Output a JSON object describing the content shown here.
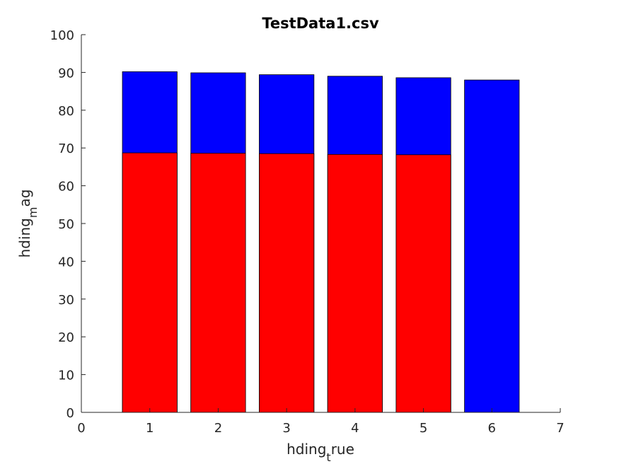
{
  "chart_data": {
    "type": "bar",
    "title": "TestData1.csv",
    "xlabel": {
      "base": "hding",
      "sub": "t",
      "rest": "rue"
    },
    "ylabel": {
      "base": "hding",
      "sub": "m",
      "rest": "ag"
    },
    "xlim": [
      0,
      7
    ],
    "ylim": [
      0,
      100
    ],
    "xticks": [
      "0",
      "1",
      "2",
      "3",
      "4",
      "5",
      "6",
      "7"
    ],
    "yticks": [
      "0",
      "10",
      "20",
      "30",
      "40",
      "50",
      "60",
      "70",
      "80",
      "90",
      "100"
    ],
    "grid": false,
    "legend": "none",
    "x": [
      1,
      2,
      3,
      4,
      5,
      6
    ],
    "series": [
      {
        "color": "#0000ff",
        "values": [
          90.2,
          89.9,
          89.4,
          89.0,
          88.6,
          88.0
        ]
      },
      {
        "color": "#ff0000",
        "values": [
          68.7,
          68.6,
          68.5,
          68.3,
          68.2,
          null
        ]
      }
    ]
  }
}
